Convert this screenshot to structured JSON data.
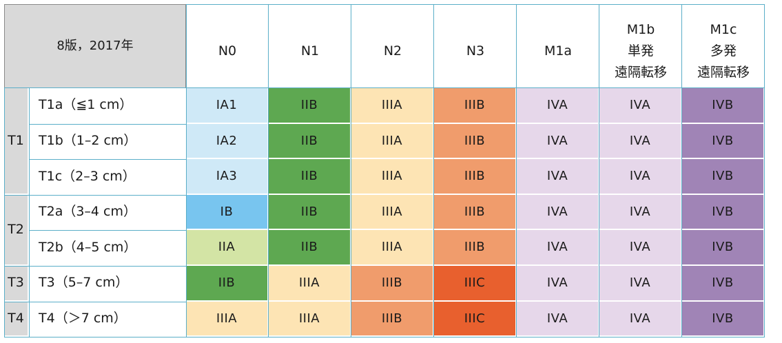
{
  "corner_label": "8版，2017年",
  "colors": {
    "IA1": "#cfe9f7",
    "IA2": "#cfe9f7",
    "IA3": "#cfe9f7",
    "IB": "#78c5ef",
    "IIA": "#d3e4a5",
    "IIB": "#5ea851",
    "IIIA": "#fde4b4",
    "IIIB": "#f09c6c",
    "IIIC": "#e8602e",
    "IVA": "#e6d7ea",
    "IVB": "#a084b6",
    "grid": "#5aaec8"
  },
  "columns": [
    {
      "lines": [
        "N0"
      ]
    },
    {
      "lines": [
        "N1"
      ]
    },
    {
      "lines": [
        "N2"
      ]
    },
    {
      "lines": [
        "N3"
      ]
    },
    {
      "lines": [
        "M1a"
      ]
    },
    {
      "lines": [
        "M1b",
        "単発",
        "遠隔転移"
      ]
    },
    {
      "lines": [
        "M1c",
        "多発",
        "遠隔転移"
      ]
    }
  ],
  "groups": [
    {
      "label": "T1",
      "rows": 3
    },
    {
      "label": "T2",
      "rows": 2
    },
    {
      "label": "T3",
      "rows": 1
    },
    {
      "label": "T4",
      "rows": 1
    }
  ],
  "rows": [
    {
      "label": "T1a（≦1 cm）",
      "stages": [
        "IA1",
        "IIB",
        "IIIA",
        "IIIB",
        "IVA",
        "IVA",
        "IVB"
      ]
    },
    {
      "label": "T1b（1–2 cm）",
      "stages": [
        "IA2",
        "IIB",
        "IIIA",
        "IIIB",
        "IVA",
        "IVA",
        "IVB"
      ]
    },
    {
      "label": "T1c（2–3 cm）",
      "stages": [
        "IA3",
        "IIB",
        "IIIA",
        "IIIB",
        "IVA",
        "IVA",
        "IVB"
      ]
    },
    {
      "label": "T2a（3–4 cm）",
      "stages": [
        "IB",
        "IIB",
        "IIIA",
        "IIIB",
        "IVA",
        "IVA",
        "IVB"
      ]
    },
    {
      "label": "T2b（4–5 cm）",
      "stages": [
        "IIA",
        "IIB",
        "IIIA",
        "IIIB",
        "IVA",
        "IVA",
        "IVB"
      ]
    },
    {
      "label": "T3（5–7 cm）",
      "stages": [
        "IIB",
        "IIIA",
        "IIIB",
        "IIIC",
        "IVA",
        "IVA",
        "IVB"
      ]
    },
    {
      "label": "T4（＞7 cm）",
      "stages": [
        "IIIA",
        "IIIA",
        "IIIB",
        "IIIC",
        "IVA",
        "IVA",
        "IVB"
      ]
    }
  ]
}
